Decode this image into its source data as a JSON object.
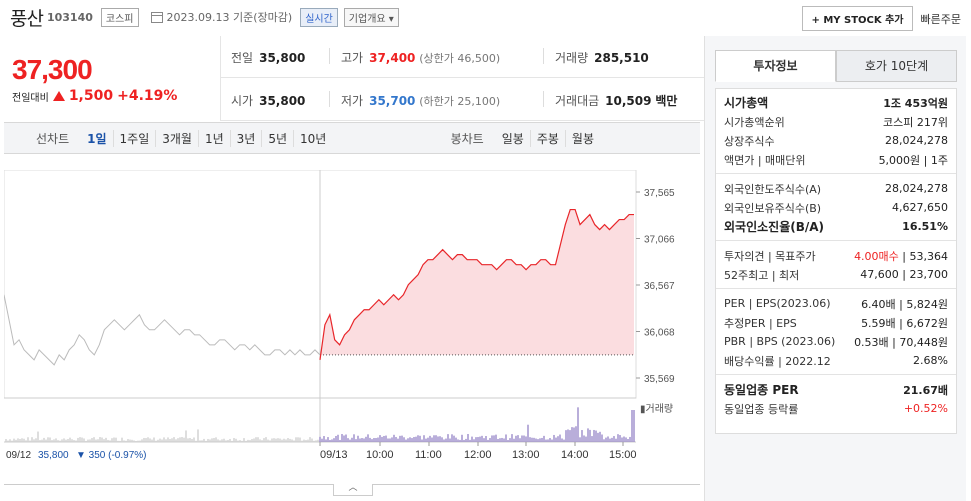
{
  "header": {
    "name": "풍산",
    "code": "103140",
    "market": "코스피",
    "date": "2023.09.13  기준(장마감)",
    "realtime": "실시간",
    "company_overview": "기업개요",
    "mystock_label": "+ MY STOCK 추가",
    "quick_order": "빠른주문"
  },
  "price": {
    "current": "37,300",
    "change_label": "전일대비",
    "change": "1,500",
    "change_pct": "+4.19%"
  },
  "stats": {
    "prev_label": "전일",
    "prev": "35,800",
    "high_label": "고가",
    "high": "37,400",
    "upper_limit": "(상한가 46,500)",
    "volume_label": "거래량",
    "volume": "285,510",
    "open_label": "시가",
    "open": "35,800",
    "low_label": "저가",
    "low": "35,700",
    "lower_limit": "(하한가 25,100)",
    "amount_label": "거래대금",
    "amount": "10,509",
    "amount_unit": "백만"
  },
  "chart_tabs": {
    "line_label": "선차트",
    "line_tabs": [
      "1일",
      "1주일",
      "3개월",
      "1년",
      "3년",
      "5년",
      "10년"
    ],
    "active": "1일",
    "candle_label": "봉차트",
    "candle_tabs": [
      "일봉",
      "주봉",
      "월봉"
    ]
  },
  "chart_data": {
    "type": "line",
    "y_ticks": [
      "37,565",
      "37,066",
      "36,567",
      "36,068",
      "35,569"
    ],
    "ylim": [
      35569,
      37565
    ],
    "x_ticks": [
      "09/13",
      "10:00",
      "11:00",
      "12:00",
      "13:00",
      "14:00",
      "15:00"
    ],
    "prev_day_label": "09/12",
    "prev_close_text": "35,800",
    "prev_change_text": "▼ 350 (-0.97%)",
    "volume_legend": "거래량",
    "colors": {
      "today": "#e8262a",
      "today_fill": "#fbdde0",
      "prev": "#bbbbbb",
      "volume": "#8a78c0",
      "volume_prev": "#c8c8c8"
    },
    "prev_day_series": [
      36400,
      36150,
      35900,
      35950,
      35850,
      35800,
      35750,
      35850,
      35800,
      35750,
      35700,
      35800,
      35750,
      35850,
      35900,
      36000,
      35950,
      35850,
      35800,
      35900,
      36050,
      36100,
      36150,
      36100,
      36050,
      36100,
      36150,
      36200,
      36100,
      36050,
      36050,
      36100,
      36150,
      36100,
      36050,
      36000,
      36050,
      36050,
      36000,
      36000,
      35950,
      35900,
      35900,
      35950,
      35950,
      35900,
      35850,
      35900,
      35900,
      35850,
      35900,
      35850,
      35800,
      35800,
      35850,
      35850,
      35800,
      35850,
      35800,
      35850,
      35800,
      35800,
      35850,
      35800
    ],
    "today_series": [
      35750,
      36100,
      36200,
      35950,
      35900,
      36000,
      36050,
      36150,
      36200,
      36250,
      36250,
      36300,
      36350,
      36300,
      36350,
      36400,
      36350,
      36400,
      36500,
      36550,
      36600,
      36700,
      36750,
      36750,
      36800,
      36850,
      36800,
      36750,
      36800,
      36800,
      36750,
      36750,
      36750,
      36700,
      36700,
      36700,
      36650,
      36700,
      36750,
      36750,
      36700,
      36700,
      36650,
      36700,
      36700,
      36750,
      36750,
      36700,
      36700,
      36900,
      37100,
      37250,
      37250,
      37100,
      37150,
      37200,
      37100,
      37050,
      37100,
      37050,
      37100,
      37150,
      37150,
      37200,
      37200
    ]
  },
  "right_panel": {
    "tab_active": "투자정보",
    "tab_other": "호가 10단계",
    "rows1": [
      {
        "k": "시가총액",
        "v": "1조 453억원",
        "bold": true
      },
      {
        "k": "시가총액순위",
        "v": "코스피 217위"
      },
      {
        "k": "상장주식수",
        "v": "28,024,278"
      },
      {
        "k": "액면가 | 매매단위",
        "v": "5,000원 | 1주"
      }
    ],
    "rows2": [
      {
        "k": "외국인한도주식수(A)",
        "v": "28,024,278"
      },
      {
        "k": "외국인보유주식수(B)",
        "v": "4,627,650"
      },
      {
        "k": "외국인소진율(B/A)",
        "v": "16.51%",
        "bold": true
      }
    ],
    "rows3": [
      {
        "k": "투자의견 | 목표주가",
        "v1": "4.00매수",
        "v2": "53,364"
      },
      {
        "k": "52주최고 | 최저",
        "v1": "47,600",
        "v2": "23,700"
      }
    ],
    "rows4": [
      {
        "k": "PER | EPS(2023.06)",
        "v1": "6.40배",
        "v2": "5,824원"
      },
      {
        "k": "추정PER | EPS",
        "v1": "5.59배",
        "v2": "6,672원"
      },
      {
        "k": "PBR | BPS (2023.06)",
        "v1": "0.53배",
        "v2": "70,448원"
      },
      {
        "k": "배당수익률 | 2022.12",
        "v1": "",
        "v2": "2.68%"
      }
    ],
    "rows5": [
      {
        "k": "동일업종 PER",
        "v": "21.67배",
        "bold": true
      },
      {
        "k": "동일업종 등락률",
        "v": "+0.52%",
        "red": true
      }
    ]
  }
}
